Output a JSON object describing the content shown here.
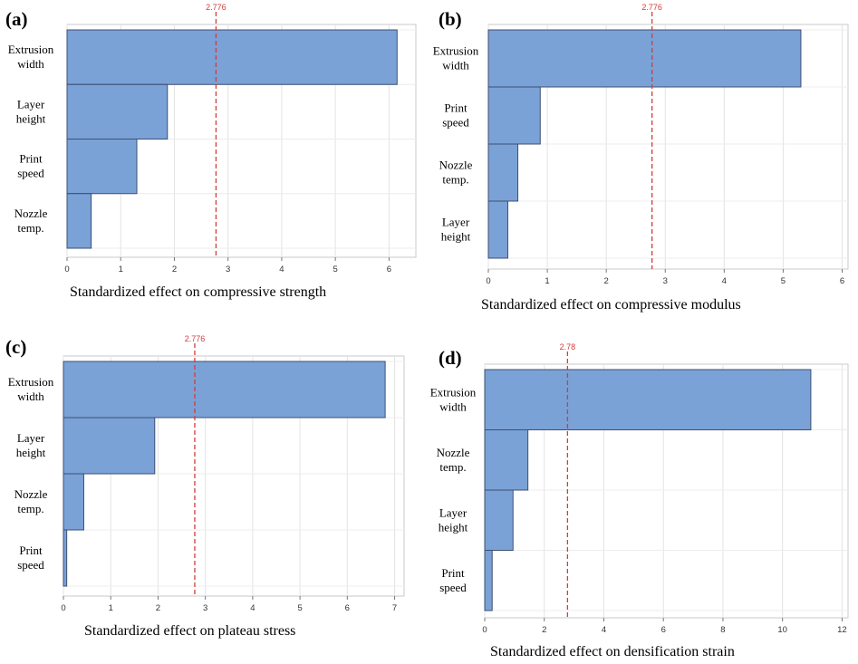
{
  "chart_data": [
    {
      "type": "bar",
      "orientation": "horizontal",
      "panel_label": "(a)",
      "categories": [
        "Extrusion width",
        "Layer height",
        "Print speed",
        "Nozzle temp."
      ],
      "values": [
        6.15,
        1.87,
        1.3,
        0.45
      ],
      "xlabel": "Standardized effect on compressive strength",
      "xlim": [
        0,
        6.5
      ],
      "xticks": [
        0,
        1,
        2,
        3,
        4,
        5,
        6
      ],
      "reference_line": {
        "value": 2.776,
        "label": "2.776",
        "color": "#d23c3c"
      },
      "bar_color": "#7aa2d6",
      "grid": true
    },
    {
      "type": "bar",
      "orientation": "horizontal",
      "panel_label": "(b)",
      "categories": [
        "Extrusion width",
        "Print speed",
        "Nozzle temp.",
        "Layer height"
      ],
      "values": [
        5.3,
        0.88,
        0.5,
        0.33
      ],
      "xlabel": "Standardized effect on compressive modulus",
      "xlim": [
        0,
        6.1
      ],
      "xticks": [
        0,
        1,
        2,
        3,
        4,
        5,
        6
      ],
      "reference_line": {
        "value": 2.776,
        "label": "2.776",
        "color": "#d23c3c"
      },
      "bar_color": "#7aa2d6",
      "grid": true
    },
    {
      "type": "bar",
      "orientation": "horizontal",
      "panel_label": "(c)",
      "categories": [
        "Extrusion width",
        "Layer height",
        "Nozzle temp.",
        "Print speed"
      ],
      "values": [
        6.8,
        1.93,
        0.43,
        0.07
      ],
      "xlabel": "Standardized effect on plateau stress",
      "xlim": [
        0,
        7.2
      ],
      "xticks": [
        0,
        1,
        2,
        3,
        4,
        5,
        6,
        7
      ],
      "reference_line": {
        "value": 2.776,
        "label": "2.776",
        "color": "#d23c3c"
      },
      "bar_color": "#7aa2d6",
      "grid": true
    },
    {
      "type": "bar",
      "orientation": "horizontal",
      "panel_label": "(d)",
      "categories": [
        "Extrusion width",
        "Nozzle temp.",
        "Layer height",
        "Print speed"
      ],
      "values": [
        10.95,
        1.45,
        0.95,
        0.25
      ],
      "xlabel": "Standardized effect on densification strain",
      "xlim": [
        0,
        12.2
      ],
      "xticks": [
        0,
        2,
        4,
        6,
        8,
        10,
        12
      ],
      "reference_line": {
        "value": 2.78,
        "label": "2.78",
        "color": "#d23c3c"
      },
      "bar_color": "#7aa2d6",
      "grid": true
    }
  ]
}
